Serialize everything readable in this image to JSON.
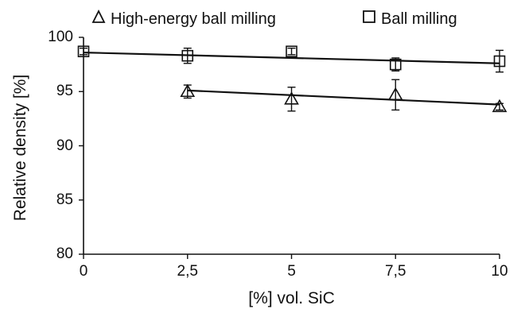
{
  "chart_data": {
    "type": "scatter",
    "xlabel": "[%] vol. SiC",
    "ylabel": "Relative density [%]",
    "xlim": [
      0,
      10
    ],
    "ylim": [
      80,
      100
    ],
    "xticks": [
      0,
      2.5,
      5,
      7.5,
      10
    ],
    "xtick_labels": [
      "0",
      "2,5",
      "5",
      "7,5",
      "10"
    ],
    "yticks": [
      80,
      85,
      90,
      95,
      100
    ],
    "ytick_labels": [
      "80",
      "85",
      "90",
      "95",
      "100"
    ],
    "legend_position": "top",
    "grid": false,
    "series": [
      {
        "name": "High-energy ball milling",
        "marker": "triangle",
        "x": [
          2.5,
          5,
          7.5,
          10
        ],
        "y": [
          95.0,
          94.3,
          94.7,
          93.6
        ],
        "error": [
          0.6,
          1.1,
          1.4,
          0.3
        ],
        "trendline": {
          "x": [
            2.5,
            10
          ],
          "y": [
            95.1,
            93.8
          ]
        }
      },
      {
        "name": "Ball milling",
        "marker": "square",
        "x": [
          0,
          2.5,
          5,
          7.5,
          10
        ],
        "y": [
          98.7,
          98.3,
          98.7,
          97.5,
          97.8
        ],
        "error": [
          0.3,
          0.7,
          0.3,
          0.6,
          1.0
        ],
        "trendline": {
          "x": [
            0,
            10
          ],
          "y": [
            98.6,
            97.6
          ]
        }
      }
    ]
  }
}
